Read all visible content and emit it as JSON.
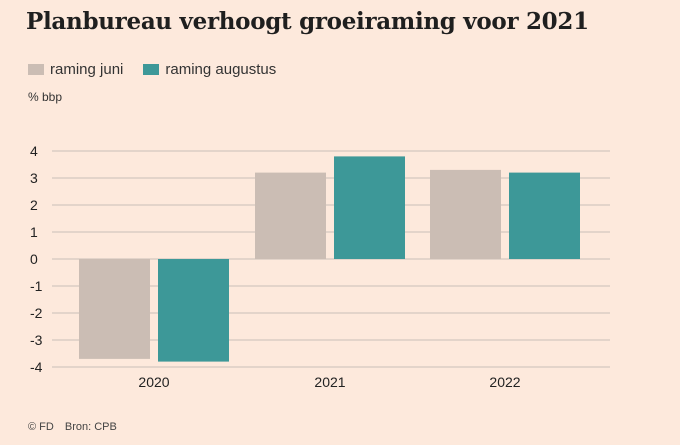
{
  "title": "Planbureau verhoogt groeiraming voor 2021",
  "unit_label": "% bbp",
  "footer": {
    "copyright": "© FD",
    "source": "Bron: CPB"
  },
  "colors": {
    "background": "#fde9dc",
    "juni": "#cbbdb4",
    "augustus": "#3d9898",
    "grid": "#c9bfb7"
  },
  "chart_data": {
    "type": "bar",
    "categories": [
      "2020",
      "2021",
      "2022"
    ],
    "series": [
      {
        "name": "raming juni",
        "values": [
          -3.7,
          3.2,
          3.3
        ]
      },
      {
        "name": "raming augustus",
        "values": [
          -3.8,
          3.8,
          3.2
        ]
      }
    ],
    "ylim": [
      -4,
      4
    ],
    "yticks": [
      4,
      3,
      2,
      1,
      0,
      -1,
      -2,
      -3,
      -4
    ],
    "ylabel": "% bbp",
    "xlabel": "",
    "grid": true,
    "legend": "top-left"
  }
}
